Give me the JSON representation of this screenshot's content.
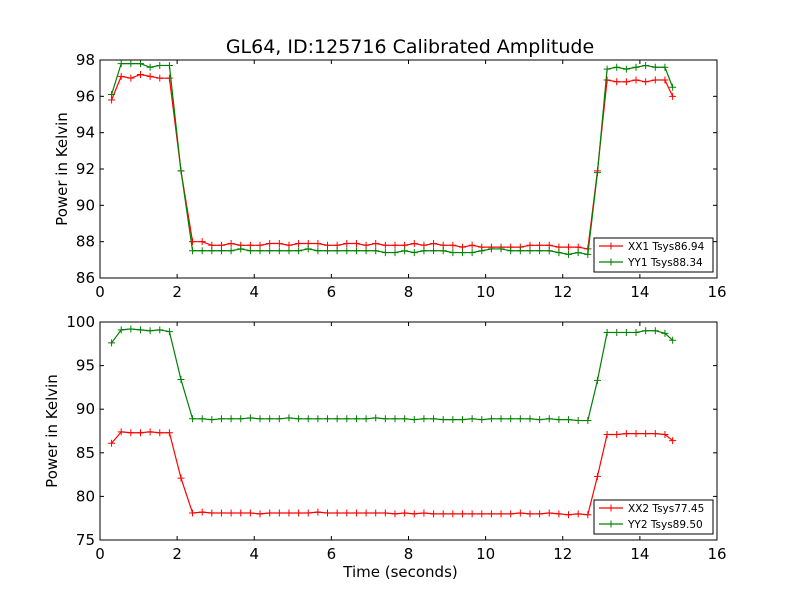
{
  "figure": {
    "title": "GL64, ID:125716 Calibrated Amplitude"
  },
  "chart_data": [
    {
      "type": "line",
      "title": "GL64, ID:125716 Calibrated Amplitude",
      "xlabel": "",
      "ylabel": "Power in Kelvin",
      "xlim": [
        0,
        16
      ],
      "ylim": [
        86,
        98
      ],
      "xticks": [
        0,
        2,
        4,
        6,
        8,
        10,
        12,
        14,
        16
      ],
      "yticks": [
        86,
        88,
        90,
        92,
        94,
        96,
        98
      ],
      "grid": false,
      "legend_position": "lower-right",
      "x": [
        0.3,
        0.55,
        0.8,
        1.05,
        1.3,
        1.55,
        1.8,
        2.1,
        2.4,
        2.65,
        2.9,
        3.15,
        3.4,
        3.65,
        3.9,
        4.15,
        4.4,
        4.65,
        4.9,
        5.15,
        5.4,
        5.65,
        5.9,
        6.15,
        6.4,
        6.65,
        6.9,
        7.15,
        7.4,
        7.65,
        7.9,
        8.15,
        8.4,
        8.65,
        8.9,
        9.15,
        9.4,
        9.65,
        9.9,
        10.15,
        10.4,
        10.65,
        10.9,
        11.15,
        11.4,
        11.65,
        11.9,
        12.15,
        12.4,
        12.65,
        12.9,
        13.15,
        13.4,
        13.65,
        13.9,
        14.15,
        14.4,
        14.65,
        14.85
      ],
      "series": [
        {
          "name": "XX1 Tsys86.94",
          "color": "#ff0000",
          "values": [
            95.8,
            97.1,
            97.0,
            97.2,
            97.1,
            97.0,
            97.0,
            91.9,
            88.0,
            88.0,
            87.8,
            87.8,
            87.9,
            87.8,
            87.8,
            87.8,
            87.9,
            87.9,
            87.8,
            87.9,
            87.9,
            87.9,
            87.8,
            87.8,
            87.9,
            87.9,
            87.8,
            87.9,
            87.8,
            87.8,
            87.8,
            87.9,
            87.8,
            87.9,
            87.8,
            87.8,
            87.7,
            87.8,
            87.7,
            87.7,
            87.7,
            87.7,
            87.7,
            87.8,
            87.8,
            87.8,
            87.7,
            87.7,
            87.7,
            87.6,
            91.9,
            96.9,
            96.8,
            96.8,
            96.9,
            96.8,
            96.9,
            96.9,
            96.0
          ]
        },
        {
          "name": "YY1 Tsys88.34",
          "color": "#008000",
          "values": [
            96.1,
            97.8,
            97.8,
            97.8,
            97.6,
            97.7,
            97.7,
            91.9,
            87.5,
            87.5,
            87.5,
            87.5,
            87.5,
            87.6,
            87.5,
            87.5,
            87.5,
            87.5,
            87.5,
            87.5,
            87.6,
            87.5,
            87.5,
            87.5,
            87.5,
            87.5,
            87.5,
            87.5,
            87.4,
            87.4,
            87.5,
            87.4,
            87.5,
            87.5,
            87.5,
            87.4,
            87.4,
            87.4,
            87.5,
            87.6,
            87.6,
            87.5,
            87.5,
            87.5,
            87.5,
            87.5,
            87.4,
            87.3,
            87.4,
            87.3,
            91.8,
            97.5,
            97.6,
            97.5,
            97.6,
            97.7,
            97.6,
            97.6,
            96.5
          ]
        }
      ]
    },
    {
      "type": "line",
      "title": "",
      "xlabel": "Time (seconds)",
      "ylabel": "Power in Kelvin",
      "xlim": [
        0,
        16
      ],
      "ylim": [
        75,
        100
      ],
      "xticks": [
        0,
        2,
        4,
        6,
        8,
        10,
        12,
        14,
        16
      ],
      "yticks": [
        75,
        80,
        85,
        90,
        95,
        100
      ],
      "grid": false,
      "legend_position": "lower-right",
      "x": [
        0.3,
        0.55,
        0.8,
        1.05,
        1.3,
        1.55,
        1.8,
        2.1,
        2.4,
        2.65,
        2.9,
        3.15,
        3.4,
        3.65,
        3.9,
        4.15,
        4.4,
        4.65,
        4.9,
        5.15,
        5.4,
        5.65,
        5.9,
        6.15,
        6.4,
        6.65,
        6.9,
        7.15,
        7.4,
        7.65,
        7.9,
        8.15,
        8.4,
        8.65,
        8.9,
        9.15,
        9.4,
        9.65,
        9.9,
        10.15,
        10.4,
        10.65,
        10.9,
        11.15,
        11.4,
        11.65,
        11.9,
        12.15,
        12.4,
        12.65,
        12.9,
        13.15,
        13.4,
        13.65,
        13.9,
        14.15,
        14.4,
        14.65,
        14.85
      ],
      "series": [
        {
          "name": "XX2 Tsys77.45",
          "color": "#ff0000",
          "values": [
            86.1,
            87.4,
            87.3,
            87.3,
            87.4,
            87.3,
            87.3,
            82.1,
            78.1,
            78.2,
            78.1,
            78.1,
            78.1,
            78.1,
            78.1,
            78.0,
            78.1,
            78.1,
            78.1,
            78.1,
            78.1,
            78.2,
            78.1,
            78.1,
            78.1,
            78.1,
            78.1,
            78.1,
            78.1,
            78.0,
            78.1,
            78.0,
            78.1,
            78.0,
            78.0,
            78.0,
            78.0,
            78.0,
            78.0,
            78.0,
            78.0,
            78.0,
            78.1,
            78.0,
            78.0,
            78.1,
            78.0,
            77.9,
            78.0,
            77.9,
            82.3,
            87.1,
            87.1,
            87.2,
            87.2,
            87.2,
            87.2,
            87.1,
            86.4
          ]
        },
        {
          "name": "YY2 Tsys89.50",
          "color": "#008000",
          "values": [
            97.6,
            99.1,
            99.2,
            99.1,
            99.0,
            99.1,
            98.9,
            93.4,
            88.9,
            88.9,
            88.8,
            88.9,
            88.9,
            88.9,
            89.0,
            88.9,
            88.9,
            88.9,
            89.0,
            88.9,
            88.9,
            88.9,
            88.9,
            88.9,
            88.9,
            88.9,
            88.9,
            89.0,
            88.9,
            88.9,
            88.9,
            88.8,
            88.9,
            88.9,
            88.8,
            88.8,
            88.8,
            88.9,
            88.8,
            88.9,
            88.9,
            88.9,
            88.9,
            88.9,
            88.8,
            88.9,
            88.8,
            88.8,
            88.7,
            88.7,
            93.3,
            98.8,
            98.8,
            98.8,
            98.8,
            99.0,
            99.0,
            98.7,
            97.9
          ]
        }
      ]
    }
  ]
}
